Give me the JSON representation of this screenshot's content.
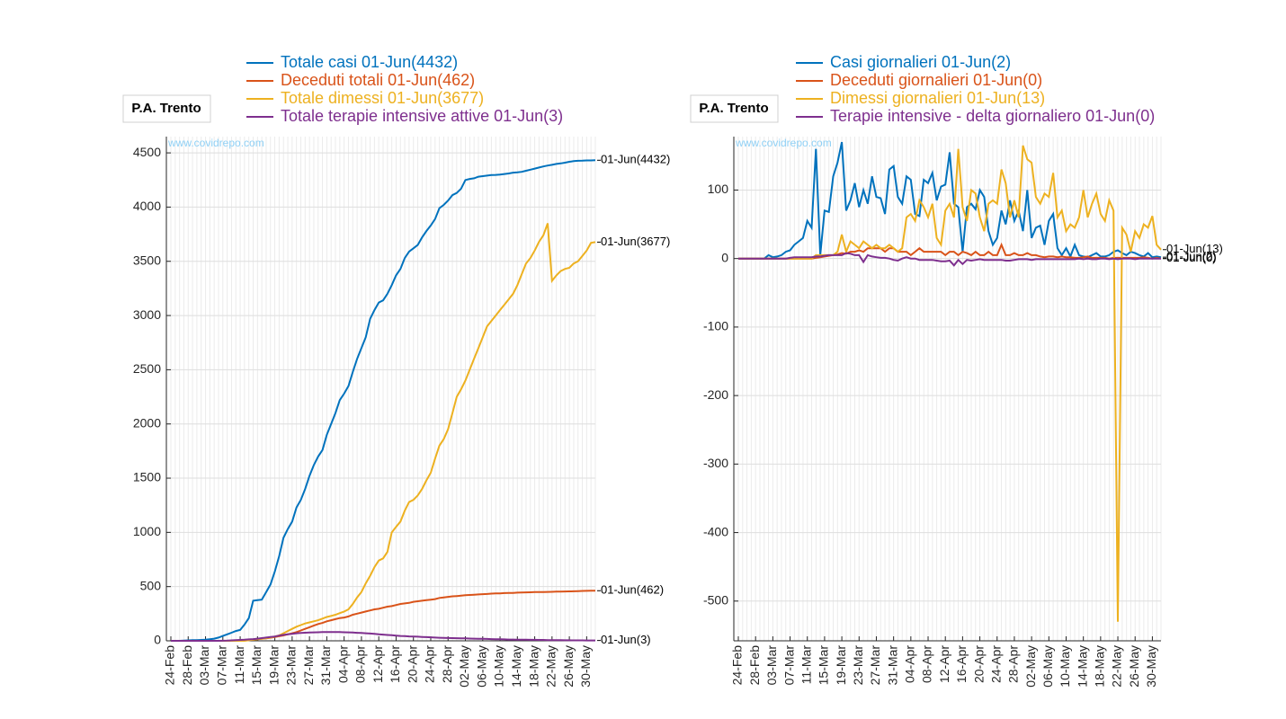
{
  "chart_data": [
    {
      "type": "line",
      "title": "P.A. Trento",
      "watermark": "www.covidrepo.com",
      "categories": [
        "24-Feb",
        null,
        null,
        null,
        "28-Feb",
        null,
        null,
        null,
        "03-Mar",
        null,
        null,
        null,
        "07-Mar",
        null,
        null,
        null,
        "11-Mar",
        null,
        null,
        null,
        "15-Mar",
        null,
        null,
        null,
        "19-Mar",
        null,
        null,
        null,
        "23-Mar",
        null,
        null,
        null,
        "27-Mar",
        null,
        null,
        null,
        "31-Mar",
        null,
        null,
        null,
        "04-Apr",
        null,
        null,
        null,
        "08-Apr",
        null,
        null,
        null,
        "12-Apr",
        null,
        null,
        null,
        "16-Apr",
        null,
        null,
        null,
        "20-Apr",
        null,
        null,
        null,
        "24-Apr",
        null,
        null,
        null,
        "28-Apr",
        null,
        null,
        null,
        "02-May",
        null,
        null,
        null,
        "06-May",
        null,
        null,
        null,
        "10-May",
        null,
        null,
        null,
        "14-May",
        null,
        null,
        null,
        "18-May",
        null,
        null,
        null,
        "22-May",
        null,
        null,
        null,
        "26-May",
        null,
        null,
        null,
        "30-May",
        null,
        null
      ],
      "ylim": [
        0,
        4650
      ],
      "yticks": [
        0,
        500,
        1000,
        1500,
        2000,
        2500,
        3000,
        3500,
        4000,
        4500
      ],
      "grid": true,
      "series": [
        {
          "name": "Totale casi 01-Jun(4432)",
          "color": "#0072BD",
          "end_label": "01-Jun(4432)",
          "values": [
            0,
            0,
            0,
            2,
            4,
            6,
            7,
            8,
            10,
            15,
            20,
            30,
            45,
            60,
            75,
            90,
            100,
            150,
            210,
            370,
            375,
            380,
            450,
            520,
            640,
            780,
            950,
            1030,
            1100,
            1230,
            1300,
            1400,
            1520,
            1620,
            1700,
            1760,
            1900,
            2000,
            2100,
            2220,
            2280,
            2350,
            2480,
            2600,
            2700,
            2800,
            2970,
            3050,
            3120,
            3140,
            3200,
            3280,
            3370,
            3430,
            3530,
            3590,
            3620,
            3650,
            3720,
            3780,
            3830,
            3890,
            3990,
            4020,
            4060,
            4110,
            4130,
            4170,
            4250,
            4260,
            4265,
            4280,
            4285,
            4290,
            4295,
            4297,
            4300,
            4305,
            4310,
            4318,
            4320,
            4325,
            4335,
            4345,
            4355,
            4365,
            4375,
            4383,
            4390,
            4398,
            4403,
            4410,
            4418,
            4424,
            4427,
            4428,
            4430,
            4430,
            4432
          ]
        },
        {
          "name": "Deceduti totali 01-Jun(462)",
          "color": "#D95319",
          "end_label": "01-Jun(462)",
          "values": [
            0,
            0,
            0,
            0,
            0,
            0,
            0,
            0,
            0,
            0,
            0,
            0,
            0,
            0,
            1,
            2,
            3,
            5,
            8,
            10,
            15,
            18,
            22,
            28,
            35,
            42,
            50,
            60,
            70,
            80,
            95,
            110,
            125,
            140,
            155,
            165,
            180,
            190,
            200,
            210,
            215,
            225,
            240,
            250,
            260,
            270,
            280,
            290,
            295,
            305,
            315,
            320,
            330,
            340,
            345,
            350,
            360,
            365,
            370,
            375,
            380,
            385,
            395,
            400,
            405,
            410,
            413,
            416,
            420,
            423,
            425,
            428,
            430,
            432,
            435,
            437,
            438,
            440,
            441,
            442,
            444,
            445,
            447,
            448,
            449,
            450,
            450,
            451,
            452,
            453,
            454,
            455,
            456,
            457,
            458,
            460,
            461,
            462,
            462
          ]
        },
        {
          "name": "Totale dimessi 01-Jun(3677)",
          "color": "#EDB120",
          "end_label": "01-Jun(3677)",
          "values": [
            0,
            0,
            0,
            0,
            0,
            0,
            0,
            0,
            0,
            0,
            0,
            0,
            0,
            0,
            0,
            0,
            0,
            0,
            5,
            10,
            15,
            20,
            25,
            30,
            40,
            50,
            70,
            90,
            110,
            130,
            145,
            160,
            170,
            180,
            190,
            205,
            220,
            230,
            240,
            255,
            270,
            290,
            340,
            400,
            450,
            530,
            600,
            680,
            740,
            760,
            820,
            1000,
            1050,
            1100,
            1200,
            1280,
            1300,
            1340,
            1400,
            1480,
            1550,
            1680,
            1800,
            1860,
            1950,
            2100,
            2250,
            2320,
            2400,
            2500,
            2600,
            2700,
            2800,
            2900,
            2950,
            3000,
            3050,
            3100,
            3150,
            3200,
            3280,
            3380,
            3480,
            3530,
            3600,
            3680,
            3740,
            3850,
            3320,
            3370,
            3410,
            3430,
            3440,
            3480,
            3500,
            3550,
            3600,
            3670,
            3677
          ]
        },
        {
          "name": "Totale terapie intensive attive 01-Jun(3)",
          "color": "#7E2F8E",
          "end_label": "01-Jun(3)",
          "values": [
            0,
            0,
            0,
            0,
            0,
            0,
            0,
            0,
            0,
            0,
            0,
            0,
            1,
            2,
            4,
            6,
            8,
            10,
            13,
            16,
            20,
            25,
            30,
            35,
            40,
            48,
            55,
            60,
            65,
            70,
            72,
            75,
            76,
            78,
            79,
            80,
            80,
            80,
            81,
            80,
            79,
            78,
            76,
            74,
            72,
            70,
            67,
            64,
            60,
            57,
            54,
            51,
            48,
            45,
            43,
            41,
            40,
            38,
            36,
            34,
            32,
            30,
            28,
            27,
            26,
            25,
            24,
            23,
            22,
            21,
            20,
            19,
            18,
            17,
            16,
            15,
            14,
            13,
            12,
            12,
            11,
            10,
            10,
            9,
            9,
            8,
            8,
            7,
            7,
            6,
            6,
            5,
            5,
            4,
            4,
            4,
            3,
            3,
            3
          ]
        }
      ]
    },
    {
      "type": "line",
      "title": "P.A. Trento",
      "watermark": "www.covidrepo.com",
      "categories": [
        "24-Feb",
        null,
        null,
        null,
        "28-Feb",
        null,
        null,
        null,
        "03-Mar",
        null,
        null,
        null,
        "07-Mar",
        null,
        null,
        null,
        "11-Mar",
        null,
        null,
        null,
        "15-Mar",
        null,
        null,
        null,
        "19-Mar",
        null,
        null,
        null,
        "23-Mar",
        null,
        null,
        null,
        "27-Mar",
        null,
        null,
        null,
        "31-Mar",
        null,
        null,
        null,
        "04-Apr",
        null,
        null,
        null,
        "08-Apr",
        null,
        null,
        null,
        "12-Apr",
        null,
        null,
        null,
        "16-Apr",
        null,
        null,
        null,
        "20-Apr",
        null,
        null,
        null,
        "24-Apr",
        null,
        null,
        null,
        "28-Apr",
        null,
        null,
        null,
        "02-May",
        null,
        null,
        null,
        "06-May",
        null,
        null,
        null,
        "10-May",
        null,
        null,
        null,
        "14-May",
        null,
        null,
        null,
        "18-May",
        null,
        null,
        null,
        "22-May",
        null,
        null,
        null,
        "26-May",
        null,
        null,
        null,
        "30-May",
        null,
        null
      ],
      "ylim": [
        -558,
        178
      ],
      "yticks": [
        -500,
        -400,
        -300,
        -200,
        -100,
        0,
        100
      ],
      "grid": true,
      "series": [
        {
          "name": "Casi giornalieri 01-Jun(2)",
          "color": "#0072BD",
          "end_label": "01-Jun(2)",
          "values": [
            0,
            0,
            0,
            0,
            0,
            0,
            0,
            5,
            2,
            3,
            5,
            10,
            12,
            20,
            25,
            30,
            55,
            45,
            160,
            5,
            70,
            68,
            120,
            140,
            170,
            70,
            85,
            110,
            75,
            100,
            80,
            120,
            90,
            88,
            65,
            130,
            135,
            90,
            80,
            120,
            115,
            65,
            62,
            115,
            110,
            125,
            85,
            105,
            108,
            155,
            80,
            75,
            10,
            75,
            80,
            72,
            100,
            90,
            40,
            20,
            30,
            70,
            50,
            85,
            55,
            70,
            40,
            100,
            30,
            45,
            48,
            20,
            55,
            65,
            15,
            5,
            15,
            3,
            20,
            5,
            3,
            2,
            5,
            8,
            3,
            3,
            5,
            10,
            12,
            8,
            5,
            10,
            8,
            5,
            3,
            8,
            2,
            3,
            2
          ]
        },
        {
          "name": "Deceduti giornalieri 01-Jun(0)",
          "color": "#D95319",
          "end_label": "01-Jun(0)",
          "values": [
            0,
            0,
            0,
            0,
            0,
            0,
            0,
            0,
            0,
            0,
            0,
            0,
            0,
            0,
            0,
            0,
            0,
            0,
            1,
            2,
            3,
            4,
            5,
            6,
            8,
            7,
            10,
            10,
            12,
            10,
            15,
            15,
            15,
            15,
            10,
            15,
            15,
            10,
            10,
            10,
            5,
            10,
            15,
            10,
            10,
            10,
            10,
            10,
            5,
            10,
            10,
            5,
            10,
            8,
            5,
            10,
            5,
            5,
            10,
            5,
            5,
            20,
            5,
            5,
            8,
            5,
            5,
            8,
            5,
            5,
            3,
            2,
            3,
            3,
            2,
            3,
            2,
            2,
            1,
            1,
            2,
            3,
            1,
            1,
            1,
            1,
            0,
            1,
            1,
            1,
            1,
            1,
            1,
            1,
            2,
            1,
            0,
            1,
            0
          ]
        },
        {
          "name": "Dimessi giornalieri 01-Jun(13)",
          "color": "#EDB120",
          "end_label": "01-Jun(13)",
          "values": [
            0,
            0,
            0,
            0,
            0,
            0,
            0,
            0,
            0,
            0,
            0,
            0,
            0,
            0,
            0,
            0,
            0,
            0,
            5,
            5,
            5,
            5,
            5,
            10,
            35,
            10,
            25,
            20,
            15,
            25,
            20,
            15,
            20,
            15,
            15,
            20,
            15,
            10,
            15,
            60,
            65,
            55,
            85,
            75,
            60,
            80,
            30,
            20,
            70,
            80,
            60,
            160,
            75,
            55,
            100,
            95,
            60,
            40,
            80,
            85,
            80,
            130,
            110,
            60,
            85,
            60,
            165,
            145,
            140,
            90,
            80,
            95,
            90,
            125,
            60,
            70,
            40,
            50,
            45,
            60,
            100,
            60,
            80,
            95,
            65,
            55,
            85,
            70,
            -530,
            45,
            35,
            10,
            40,
            30,
            50,
            45,
            62,
            20,
            13
          ]
        },
        {
          "name": "Terapie intensive - delta giornaliero 01-Jun(0)",
          "color": "#7E2F8E",
          "end_label": "01-Jun(0)",
          "values": [
            0,
            0,
            0,
            0,
            0,
            0,
            0,
            0,
            0,
            0,
            0,
            0,
            1,
            2,
            2,
            2,
            2,
            2,
            3,
            3,
            4,
            5,
            5,
            5,
            5,
            8,
            7,
            5,
            5,
            -5,
            5,
            3,
            2,
            1,
            1,
            0,
            -2,
            -3,
            0,
            2,
            0,
            0,
            -2,
            -2,
            -2,
            -2,
            -3,
            -4,
            -4,
            -3,
            -10,
            -2,
            -8,
            -2,
            -3,
            -2,
            -1,
            -2,
            -2,
            -2,
            -2,
            -2,
            -3,
            -3,
            -2,
            -1,
            -1,
            -1,
            -2,
            -1,
            -1,
            -1,
            -1,
            -1,
            -1,
            -1,
            -1,
            -1,
            -1,
            0,
            -1,
            0,
            -1,
            -1,
            0,
            0,
            -1,
            0,
            -1,
            0,
            0,
            0,
            -1,
            0,
            0,
            0,
            0,
            0,
            0
          ]
        }
      ]
    }
  ]
}
